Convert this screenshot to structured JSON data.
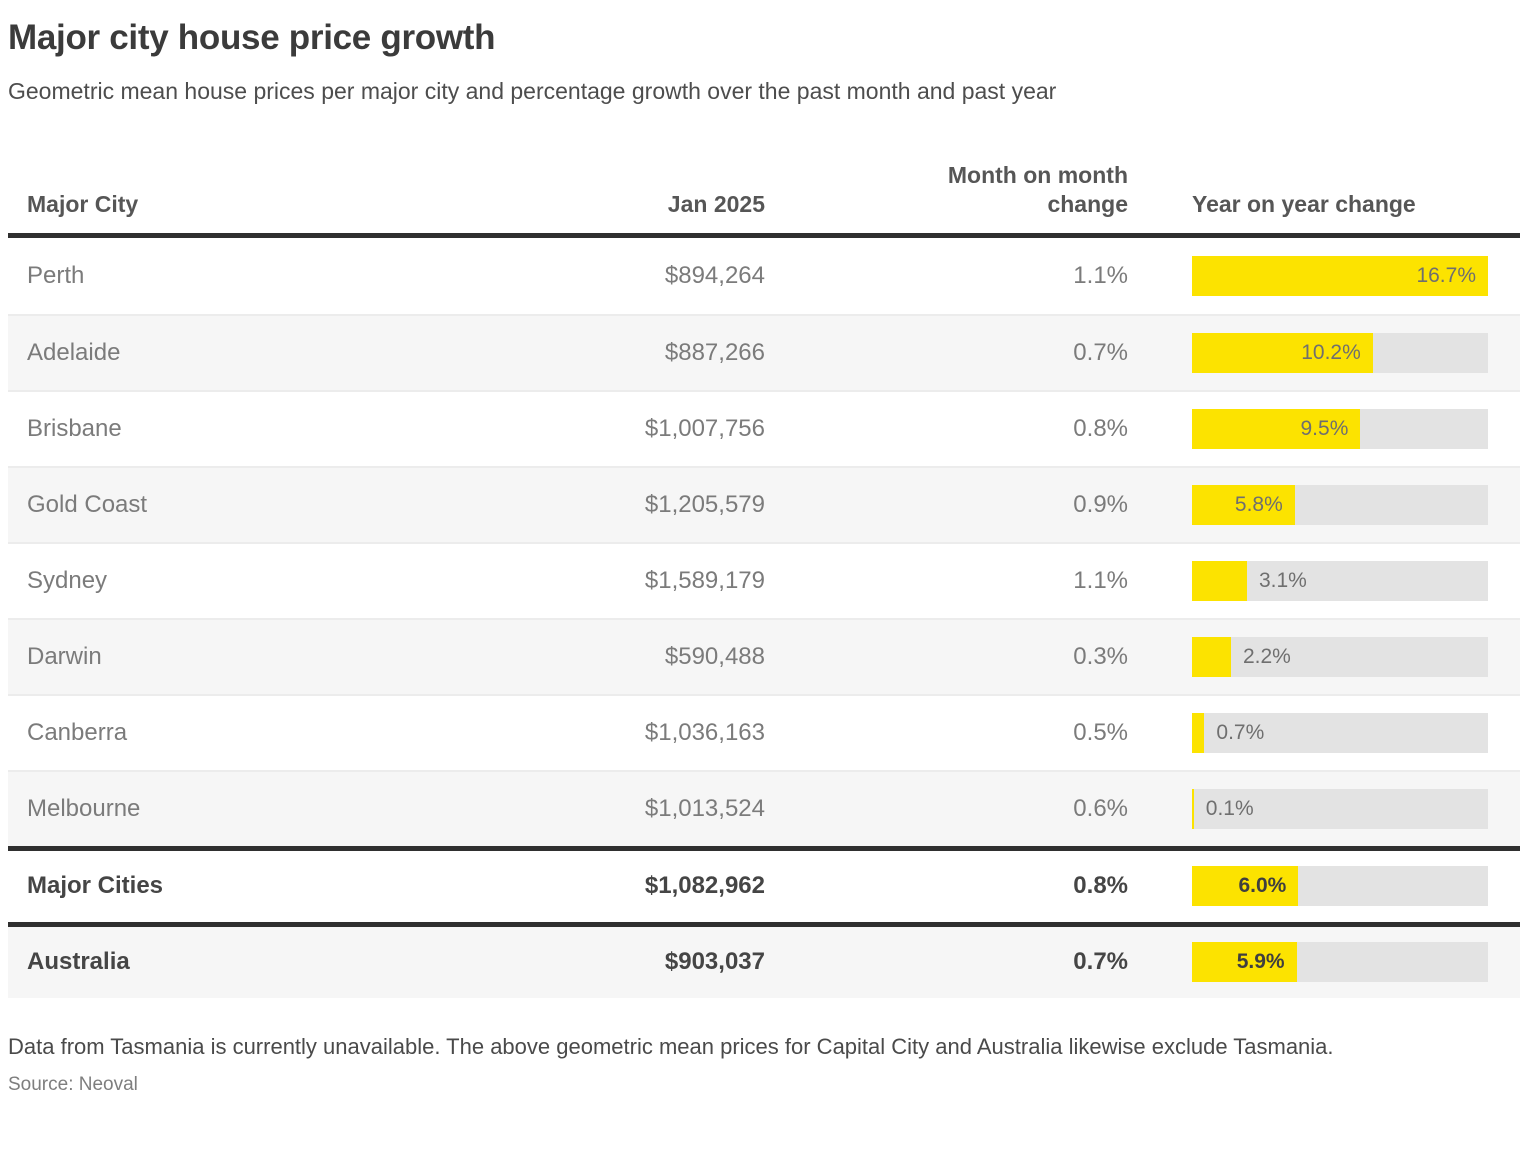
{
  "header": {
    "title": "Major city house price growth",
    "subtitle": "Geometric mean house prices per major city and percentage growth over the past month and past year"
  },
  "columns": {
    "city": "Major City",
    "price": "Jan 2025",
    "mom": "Month on month change",
    "yoy": "Year on year change"
  },
  "chart_data": {
    "type": "table",
    "title": "Major city house price growth",
    "columns": [
      "Major City",
      "Jan 2025",
      "Month on month change",
      "Year on year change"
    ],
    "bar_column": "Year on year change",
    "bar_axis_max": 16.7,
    "rows": [
      {
        "city": "Perth",
        "price": "$894,264",
        "mom": "1.1%",
        "yoy_value": 16.7,
        "yoy_label": "16.7%",
        "emphasis": false
      },
      {
        "city": "Adelaide",
        "price": "$887,266",
        "mom": "0.7%",
        "yoy_value": 10.2,
        "yoy_label": "10.2%",
        "emphasis": false
      },
      {
        "city": "Brisbane",
        "price": "$1,007,756",
        "mom": "0.8%",
        "yoy_value": 9.5,
        "yoy_label": "9.5%",
        "emphasis": false
      },
      {
        "city": "Gold Coast",
        "price": "$1,205,579",
        "mom": "0.9%",
        "yoy_value": 5.8,
        "yoy_label": "5.8%",
        "emphasis": false
      },
      {
        "city": "Sydney",
        "price": "$1,589,179",
        "mom": "1.1%",
        "yoy_value": 3.1,
        "yoy_label": "3.1%",
        "emphasis": false
      },
      {
        "city": "Darwin",
        "price": "$590,488",
        "mom": "0.3%",
        "yoy_value": 2.2,
        "yoy_label": "2.2%",
        "emphasis": false
      },
      {
        "city": "Canberra",
        "price": "$1,036,163",
        "mom": "0.5%",
        "yoy_value": 0.7,
        "yoy_label": "0.7%",
        "emphasis": false
      },
      {
        "city": "Melbourne",
        "price": "$1,013,524",
        "mom": "0.6%",
        "yoy_value": 0.1,
        "yoy_label": "0.1%",
        "emphasis": false
      },
      {
        "city": "Major Cities",
        "price": "$1,082,962",
        "mom": "0.8%",
        "yoy_value": 6.0,
        "yoy_label": "6.0%",
        "emphasis": true
      },
      {
        "city": "Australia",
        "price": "$903,037",
        "mom": "0.7%",
        "yoy_value": 5.9,
        "yoy_label": "5.9%",
        "emphasis": true
      }
    ]
  },
  "footer": {
    "note": "Data from Tasmania is currently unavailable. The above geometric mean prices for Capital City and Australia likewise exclude Tasmania.",
    "source": "Source: Neoval"
  },
  "colors": {
    "accent_yellow": "#fce300",
    "bar_track_gray": "#e3e3e3",
    "row_alt_gray": "#f6f6f6",
    "border_dark": "#2f2f2f"
  }
}
